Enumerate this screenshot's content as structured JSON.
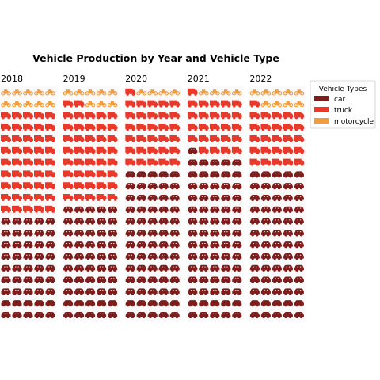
{
  "chart_data": {
    "type": "waffle",
    "title": "Vehicle Production by Year and Vehicle Type",
    "categories": [
      "2018",
      "2019",
      "2020",
      "2021",
      "2022"
    ],
    "series": [
      {
        "name": "car",
        "color": "#7f1d1d",
        "icon": "car-icon",
        "values": [
          45,
          50,
          65,
          71,
          65
        ]
      },
      {
        "name": "truck",
        "color": "#e8392a",
        "icon": "truck-icon",
        "values": [
          45,
          42,
          31,
          25,
          26
        ]
      },
      {
        "name": "motorcycle",
        "color": "#f39c3a",
        "icon": "motorcycle-icon",
        "values": [
          10,
          8,
          4,
          4,
          9
        ]
      }
    ],
    "grid": {
      "rows": 20,
      "columns": 5
    },
    "legend": {
      "title": "Vehicle Types",
      "position": "right"
    }
  }
}
